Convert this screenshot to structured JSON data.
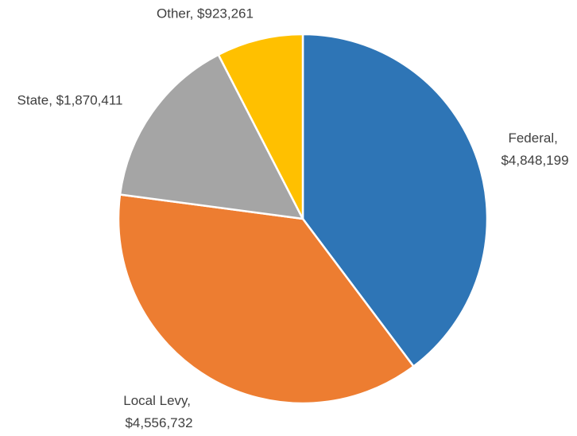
{
  "chart_data": {
    "type": "pie",
    "values": [
      4848199,
      4556732,
      1870411,
      923261
    ],
    "value_labels": [
      "Federal, $4,848,199",
      "Local Levy, $4,556,732",
      "State, $1,870,411",
      "Other, $923,261"
    ],
    "colors": [
      "#2e75b6",
      "#ed7d31",
      "#a5a5a5",
      "#ffc000"
    ]
  }
}
